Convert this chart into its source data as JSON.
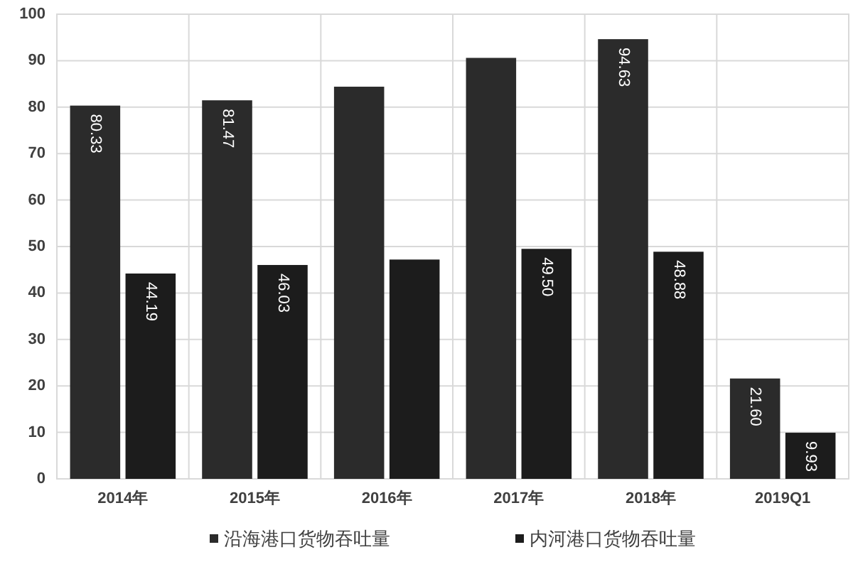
{
  "chart_data": {
    "type": "bar",
    "categories": [
      "2014年",
      "2015年",
      "2016年",
      "2017年",
      "2018年",
      "2019Q1"
    ],
    "series": [
      {
        "name": "沿海港口货物吞吐量",
        "color": "#2b2b2b",
        "values": [
          80.33,
          81.47,
          84.4,
          90.6,
          94.63,
          21.6
        ],
        "value_labels": [
          "80.33",
          "81.47",
          null,
          null,
          "94.63",
          "21.60"
        ]
      },
      {
        "name": "内河港口货物吞吐量",
        "color": "#1c1c1c",
        "values": [
          44.19,
          46.03,
          47.2,
          49.5,
          48.88,
          9.93
        ],
        "value_labels": [
          "44.19",
          "46.03",
          null,
          "49.50",
          "48.88",
          "9.93"
        ]
      }
    ],
    "ylim": [
      0,
      100
    ],
    "yticks": [
      0,
      10,
      20,
      30,
      40,
      50,
      60,
      70,
      80,
      90,
      100
    ],
    "grid": true,
    "legend": "bottom"
  }
}
